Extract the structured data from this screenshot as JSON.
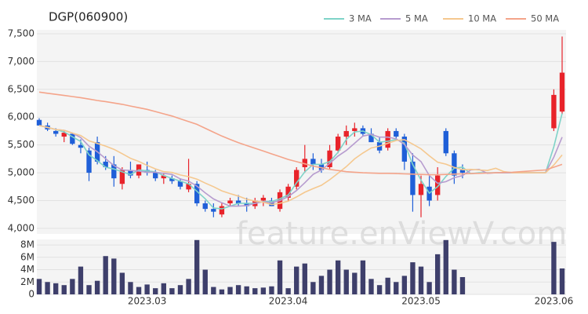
{
  "chart_data": [
    {
      "type": "candlestick",
      "title": "DGP(060900)",
      "watermark": "feature.enViewV.com",
      "categories": [
        null,
        null,
        null,
        null,
        null,
        null,
        null,
        null,
        null,
        null,
        null,
        null,
        null,
        null,
        null,
        null,
        null,
        null,
        null,
        null,
        null,
        null,
        null,
        null,
        null,
        null,
        null,
        null,
        null,
        null,
        null,
        null,
        null,
        null,
        null,
        null,
        null,
        null,
        null,
        null,
        null,
        null,
        null,
        null,
        null,
        null,
        null,
        null,
        null,
        null,
        null,
        null,
        null,
        null,
        null,
        null,
        null,
        null,
        null,
        null,
        null,
        null,
        null,
        null
      ],
      "open": [
        5950,
        5850,
        5750,
        5650,
        5700,
        5500,
        5400,
        5550,
        5200,
        5150,
        4800,
        5050,
        4950,
        5050,
        5000,
        4900,
        4900,
        4850,
        4700,
        4800,
        4450,
        4350,
        4250,
        4450,
        4500,
        4450,
        4400,
        4500,
        4500,
        4350,
        4550,
        4750,
        5100,
        5250,
        5150,
        5100,
        5400,
        5650,
        5750,
        5800,
        5700,
        5550,
        5450,
        5750,
        5650,
        5200,
        4600,
        4750,
        4600,
        5750,
        5350,
        5050,
        null,
        null,
        null,
        null,
        null,
        null,
        null,
        null,
        null,
        null,
        5800,
        6100
      ],
      "high": [
        5980,
        5900,
        5800,
        5750,
        5720,
        5600,
        5450,
        5650,
        5300,
        5300,
        5100,
        5200,
        5150,
        5200,
        5050,
        5000,
        4950,
        4900,
        5250,
        4850,
        4500,
        4450,
        4450,
        4550,
        4600,
        4550,
        4550,
        4600,
        4550,
        4700,
        4800,
        5100,
        5500,
        5350,
        5250,
        5500,
        5700,
        5850,
        5900,
        5850,
        5800,
        5650,
        5800,
        5800,
        5700,
        5350,
        4950,
        4950,
        5100,
        5800,
        5400,
        5150,
        null,
        null,
        null,
        null,
        null,
        null,
        null,
        null,
        null,
        null,
        6500,
        7450
      ],
      "low": [
        5850,
        5750,
        5650,
        5550,
        5500,
        5350,
        4850,
        5150,
        5050,
        4750,
        4700,
        4900,
        4900,
        4950,
        4850,
        4800,
        4800,
        4700,
        4650,
        4400,
        4300,
        4200,
        4200,
        4400,
        4400,
        4300,
        4350,
        4400,
        4400,
        4300,
        4500,
        4700,
        5000,
        5050,
        5000,
        5050,
        5350,
        5500,
        5650,
        5650,
        5550,
        5350,
        5400,
        5600,
        5050,
        4300,
        4200,
        4400,
        4500,
        5300,
        4800,
        4900,
        null,
        null,
        null,
        null,
        null,
        null,
        null,
        null,
        null,
        null,
        5750,
        6050
      ],
      "close": [
        5850,
        5780,
        5700,
        5720,
        5520,
        5450,
        5000,
        5200,
        5100,
        4900,
        5050,
        4950,
        5150,
        5000,
        4900,
        4950,
        4850,
        4750,
        4800,
        4450,
        4350,
        4300,
        4400,
        4500,
        4450,
        4400,
        4500,
        4550,
        4400,
        4650,
        4750,
        5050,
        5250,
        5150,
        5050,
        5400,
        5650,
        5750,
        5800,
        5700,
        5550,
        5400,
        5750,
        5650,
        5200,
        4600,
        4800,
        4500,
        4950,
        5350,
        4950,
        5000,
        null,
        null,
        null,
        null,
        null,
        null,
        null,
        null,
        null,
        null,
        6400,
        6800
      ],
      "up_color": "#e8232a",
      "down_color": "#1f5fd8",
      "series": [
        {
          "name": "3 MA",
          "color": "#7fd3c8",
          "values": [
            5850,
            5815,
            5777,
            5733,
            5647,
            5563,
            5323,
            5217,
            5100,
            5067,
            5017,
            4967,
            5050,
            5033,
            5017,
            4950,
            4900,
            4850,
            4800,
            4667,
            4533,
            4367,
            4350,
            4400,
            4450,
            4450,
            4450,
            4483,
            4483,
            4533,
            4600,
            4817,
            5017,
            5150,
            5150,
            5200,
            5367,
            5600,
            5733,
            5750,
            5683,
            5550,
            5567,
            5600,
            5533,
            5150,
            4867,
            4633,
            4750,
            4933,
            5083,
            5100,
            4983,
            5000,
            5000,
            5000,
            5000,
            5000,
            5000,
            5000,
            5000,
            5000,
            5467,
            6067
          ]
        },
        {
          "name": "5 MA",
          "color": "#b79ccf",
          "values": [
            5850,
            5815,
            5777,
            5763,
            5714,
            5634,
            5478,
            5378,
            5254,
            5130,
            5050,
            5040,
            5030,
            5010,
            5010,
            4990,
            4970,
            4890,
            4850,
            4760,
            4640,
            4530,
            4460,
            4400,
            4400,
            4410,
            4450,
            4480,
            4460,
            4500,
            4570,
            4680,
            4820,
            4970,
            5050,
            5170,
            5300,
            5400,
            5530,
            5660,
            5690,
            5640,
            5640,
            5610,
            5510,
            5320,
            5200,
            4950,
            4810,
            4840,
            4910,
            4950,
            5050,
            5060,
            4990,
            5000,
            5000,
            5000,
            5000,
            5000,
            5000,
            5000,
            5280,
            5640
          ]
        },
        {
          "name": "10 MA",
          "color": "#f5c88f",
          "values": [
            5850,
            5815,
            5777,
            5763,
            5714,
            5670,
            5574,
            5528,
            5480,
            5422,
            5342,
            5259,
            5204,
            5132,
            5070,
            5020,
            5005,
            4960,
            4930,
            4885,
            4815,
            4750,
            4675,
            4625,
            4580,
            4525,
            4490,
            4470,
            4430,
            4450,
            4490,
            4565,
            4650,
            4715,
            4775,
            4875,
            4990,
            5110,
            5250,
            5355,
            5445,
            5480,
            5530,
            5580,
            5595,
            5515,
            5430,
            5305,
            5190,
            5155,
            5095,
            5055,
            5060,
            5050,
            5040,
            5080,
            5020,
            5000,
            5000,
            5000,
            5000,
            5000,
            5140,
            5320
          ]
        },
        {
          "name": "50 MA",
          "color": "#f4a48a",
          "values": [
            6450,
            6430,
            6410,
            6390,
            6370,
            6350,
            6325,
            6300,
            6280,
            6255,
            6230,
            6200,
            6170,
            6140,
            6100,
            6060,
            6020,
            5970,
            5920,
            5870,
            5800,
            5730,
            5660,
            5600,
            5540,
            5490,
            5440,
            5390,
            5340,
            5290,
            5240,
            5200,
            5160,
            5120,
            5090,
            5060,
            5040,
            5020,
            5010,
            5000,
            4995,
            4990,
            4990,
            4985,
            4980,
            4975,
            4970,
            4965,
            4965,
            4970,
            4975,
            4980,
            4985,
            4990,
            4995,
            5000,
            5005,
            5010,
            5020,
            5030,
            5040,
            5050,
            5100,
            5150
          ]
        }
      ],
      "ylim": [
        3900,
        7570
      ],
      "yticks": [
        {
          "value": 4000,
          "label": "4,000"
        },
        {
          "value": 4500,
          "label": "4,500"
        },
        {
          "value": 5000,
          "label": "5,000"
        },
        {
          "value": 5500,
          "label": "5,500"
        },
        {
          "value": 6000,
          "label": "6,000"
        },
        {
          "value": 6500,
          "label": "6,500"
        },
        {
          "value": 7000,
          "label": "7,000"
        },
        {
          "value": 7500,
          "label": "7,500"
        }
      ],
      "grid": true,
      "legend": "top-right"
    },
    {
      "type": "bar",
      "color": "#3e3f6b",
      "categories": [
        null,
        null,
        null,
        null,
        null,
        null,
        null,
        null,
        null,
        null,
        null,
        null,
        null,
        null,
        null,
        null,
        null,
        null,
        null,
        null,
        null,
        null,
        null,
        null,
        null,
        null,
        null,
        null,
        null,
        null,
        null,
        null,
        null,
        null,
        null,
        null,
        null,
        null,
        null,
        null,
        null,
        null,
        null,
        null,
        null,
        null,
        null,
        null,
        null,
        null,
        null,
        null,
        null,
        null,
        null,
        null,
        null,
        null,
        null,
        null,
        null,
        null,
        null,
        null
      ],
      "values": [
        2500000,
        2000000,
        1800000,
        1500000,
        2500000,
        4500000,
        1500000,
        2200000,
        6200000,
        5800000,
        3500000,
        2000000,
        1200000,
        1600000,
        1000000,
        1800000,
        1000000,
        1500000,
        2500000,
        8800000,
        4000000,
        1200000,
        800000,
        1200000,
        1500000,
        1300000,
        1000000,
        1100000,
        1300000,
        5500000,
        1000000,
        4500000,
        5000000,
        2000000,
        3000000,
        4000000,
        5500000,
        4000000,
        3500000,
        5500000,
        2500000,
        1500000,
        2700000,
        2000000,
        3000000,
        5200000,
        4500000,
        2000000,
        6500000,
        8800000,
        4000000,
        2800000,
        null,
        null,
        null,
        null,
        null,
        null,
        null,
        null,
        null,
        null,
        8500000,
        4200000
      ],
      "ylim": [
        0,
        8900000
      ],
      "yticks": [
        0,
        {
          "value": 2000000,
          "label": "2M"
        },
        {
          "value": 4000000,
          "label": "4M"
        },
        {
          "value": 6000000,
          "label": "6M"
        },
        {
          "value": 8000000,
          "label": "8M"
        }
      ],
      "xticks": [
        {
          "value": 13,
          "label": "2023.03"
        },
        {
          "value": 30,
          "label": "2023.04"
        },
        {
          "value": 46,
          "label": "2023.05"
        },
        {
          "value": 62,
          "label": "2023.06"
        }
      ],
      "grid": true
    }
  ]
}
